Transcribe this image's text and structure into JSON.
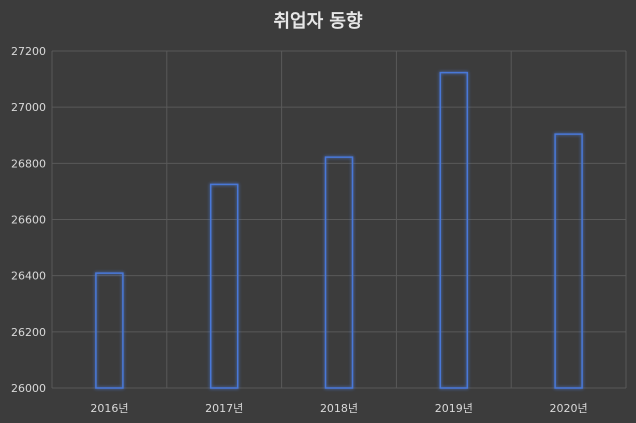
{
  "chart_data": {
    "type": "bar",
    "title": "취업자 동향",
    "xlabel": "",
    "ylabel": "",
    "categories": [
      "2016년",
      "2017년",
      "2018년",
      "2019년",
      "2020년"
    ],
    "series": [
      {
        "values": [
          26409,
          26725,
          26822,
          27123,
          26904
        ]
      }
    ],
    "ylim": [
      26000,
      27200
    ],
    "yticks": [
      26000,
      26200,
      26400,
      26600,
      26800,
      27000,
      27200
    ],
    "grid": true,
    "legend": "none",
    "colors": {
      "background": "#3c3c3c",
      "bar_stroke": "#4a78d8",
      "bar_glow": "#2f5fc7",
      "grid": "#595959",
      "text": "#d9d9d9"
    }
  }
}
